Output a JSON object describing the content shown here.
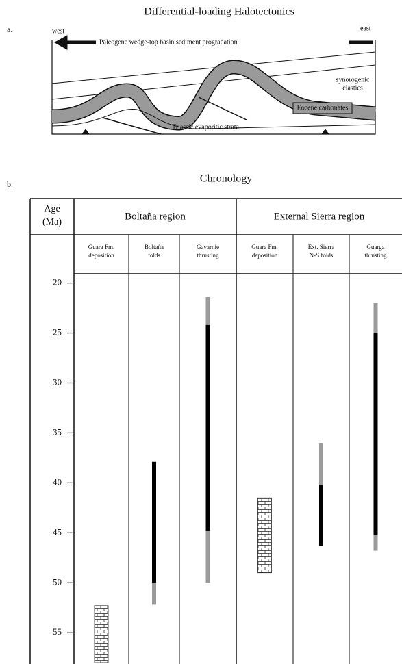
{
  "figure_a": {
    "title": "Differential-loading Halotectonics",
    "label": "a.",
    "west": "west",
    "east": "east",
    "arrow_text": "Paleogene wedge-top basin  sediment progradation",
    "clastics": [
      "synorogenic",
      "clastics"
    ],
    "carbonates": "Eocene carbonates",
    "evaporites": "Triassic evaporitic strata"
  },
  "figure_b": {
    "label": "b.",
    "title": "Chronology",
    "axis_label": [
      "Age",
      "(Ma)"
    ],
    "ylim": [
      19,
      58
    ],
    "yticks": [
      20,
      25,
      30,
      35,
      40,
      45,
      50,
      55
    ],
    "regions": [
      {
        "name": "Boltaña region",
        "columns": [
          {
            "header": [
              "Guara Fm.",
              "deposition"
            ],
            "ranges": [
              {
                "from": 52.3,
                "to": 58,
                "color": "brick"
              }
            ]
          },
          {
            "header": [
              "Boltaña",
              "folds"
            ],
            "ranges": [
              {
                "from": 37.9,
                "to": 50,
                "color": "#000000"
              },
              {
                "from": 50,
                "to": 52.2,
                "color": "#9a9a9a"
              }
            ]
          },
          {
            "header": [
              "Gavarnie",
              "thrusting"
            ],
            "ranges": [
              {
                "from": 21.4,
                "to": 24.2,
                "color": "#9a9a9a"
              },
              {
                "from": 24.2,
                "to": 44.8,
                "color": "#000000"
              },
              {
                "from": 44.8,
                "to": 50,
                "color": "#9a9a9a"
              }
            ]
          }
        ]
      },
      {
        "name": "External Sierra region",
        "columns": [
          {
            "header": [
              "Guara Fm.",
              "deposition"
            ],
            "ranges": [
              {
                "from": 41.5,
                "to": 49,
                "color": "brick"
              }
            ]
          },
          {
            "header": [
              "Ext. Sierra",
              "N-S folds"
            ],
            "ranges": [
              {
                "from": 36,
                "to": 40.2,
                "color": "#9a9a9a"
              },
              {
                "from": 40.2,
                "to": 46.3,
                "color": "#000000"
              }
            ]
          },
          {
            "header": [
              "Guarga",
              "thrusting"
            ],
            "ranges": [
              {
                "from": 22,
                "to": 25,
                "color": "#9a9a9a"
              },
              {
                "from": 25,
                "to": 45.2,
                "color": "#000000"
              },
              {
                "from": 45.2,
                "to": 46.8,
                "color": "#9a9a9a"
              }
            ]
          }
        ]
      }
    ]
  }
}
